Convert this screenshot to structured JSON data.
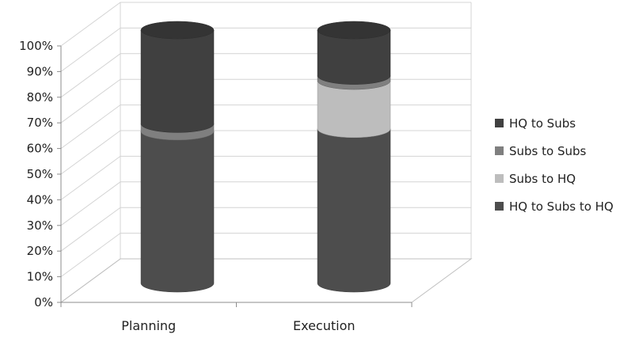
{
  "chart_data": {
    "type": "bar",
    "stacked": true,
    "percent": true,
    "style": "3d-cylinder",
    "categories": [
      "Planning",
      "Execution"
    ],
    "series": [
      {
        "name": "HQ to Subs to HQ",
        "values": [
          60,
          61
        ],
        "color": "#4d4d4d"
      },
      {
        "name": "Subs to HQ",
        "values": [
          0,
          19
        ],
        "color": "#bdbdbd"
      },
      {
        "name": "Subs to Subs",
        "values": [
          3,
          2
        ],
        "color": "#7f7f7f"
      },
      {
        "name": "HQ to Subs",
        "values": [
          37,
          18
        ],
        "color": "#404040"
      }
    ],
    "legend_order": [
      "HQ to Subs",
      "Subs to Subs",
      "Subs to HQ",
      "HQ to Subs to HQ"
    ],
    "y_ticks": [
      "0%",
      "10%",
      "20%",
      "30%",
      "40%",
      "50%",
      "60%",
      "70%",
      "80%",
      "90%",
      "100%"
    ],
    "ylim": [
      0,
      100
    ],
    "title": "",
    "xlabel": "",
    "ylabel": "",
    "grid": true,
    "legend_position": "right"
  }
}
